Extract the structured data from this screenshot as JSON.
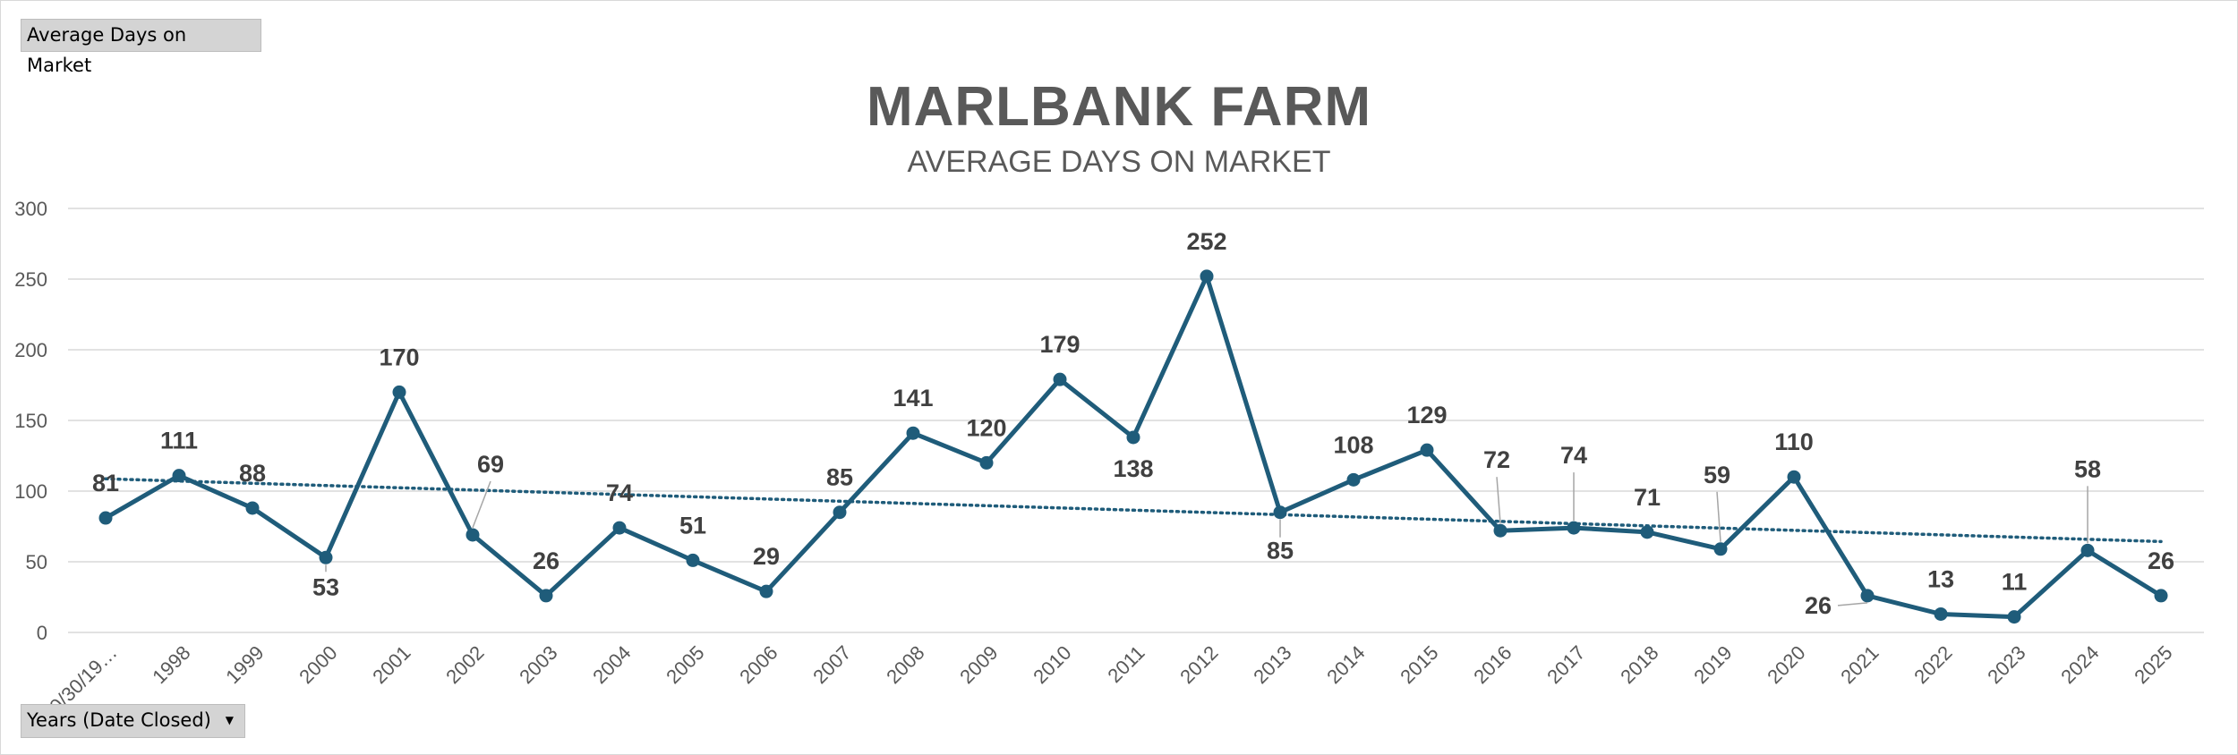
{
  "field_buttons": {
    "values_field": "Average Days on Market",
    "axis_field": "Years (Date Closed)",
    "axis_dropdown_icon": "dropdown-arrow-icon"
  },
  "colors": {
    "series": "#1f5c7a",
    "trendline": "#1f5c7a",
    "gridline": "#d9d9d9",
    "text": "#595959"
  },
  "chart_data": {
    "type": "line",
    "title": "MARLBANK FARM",
    "subtitle": "AVERAGE DAYS ON MARKET",
    "xlabel": "",
    "ylabel": "",
    "ylim": [
      0,
      300
    ],
    "yticks": [
      0,
      50,
      100,
      150,
      200,
      250,
      300
    ],
    "grid": true,
    "legend": "none",
    "trendline": "linear (dotted)",
    "categories": [
      "0/30/19…",
      "1998",
      "1999",
      "2000",
      "2001",
      "2002",
      "2003",
      "2004",
      "2005",
      "2006",
      "2007",
      "2008",
      "2009",
      "2010",
      "2011",
      "2012",
      "2013",
      "2014",
      "2015",
      "2016",
      "2017",
      "2018",
      "2019",
      "2020",
      "2021",
      "2022",
      "2023",
      "2024",
      "2025"
    ],
    "series": [
      {
        "values": [
          81,
          111,
          88,
          53,
          170,
          69,
          26,
          74,
          51,
          29,
          85,
          141,
          120,
          179,
          138,
          252,
          85,
          108,
          129,
          72,
          74,
          71,
          59,
          110,
          26,
          13,
          11,
          58,
          26
        ]
      }
    ]
  }
}
